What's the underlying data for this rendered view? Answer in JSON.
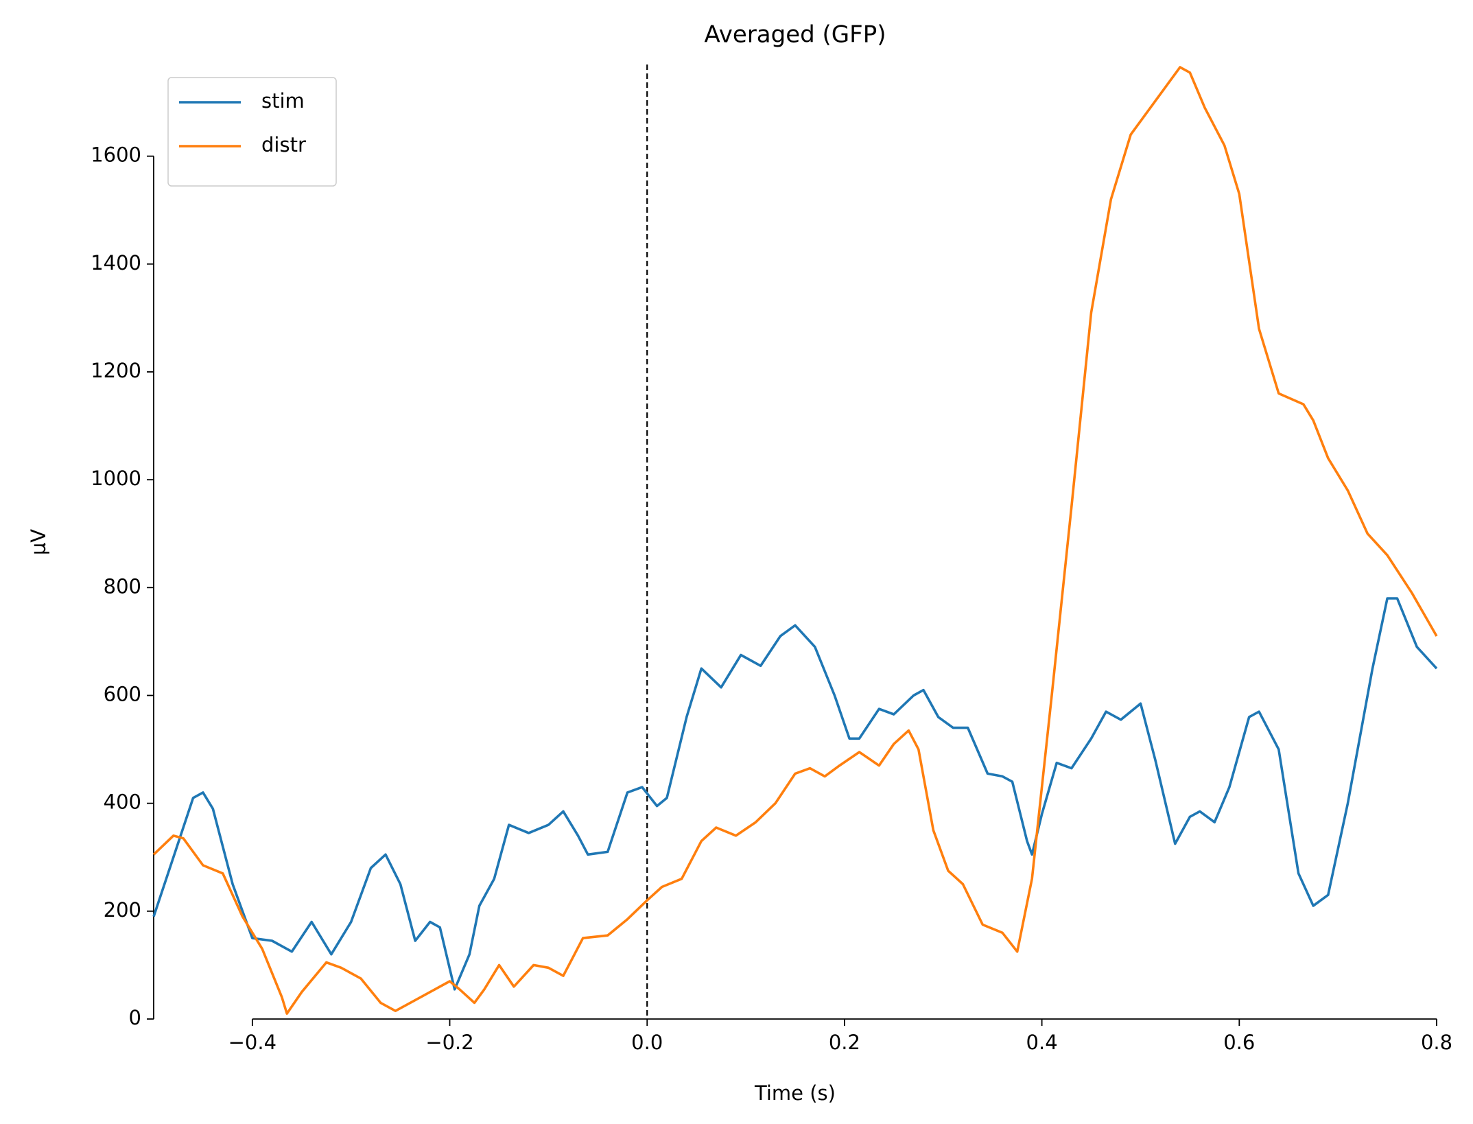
{
  "chart_data": {
    "type": "line",
    "title": "Averaged (GFP)",
    "xlabel": "Time (s)",
    "ylabel": "µV",
    "xlim": [
      -0.5,
      0.8
    ],
    "ylim": [
      0,
      1770
    ],
    "xticks": [
      {
        "value": -0.4,
        "label": "−0.4"
      },
      {
        "value": -0.2,
        "label": "−0.2"
      },
      {
        "value": 0.0,
        "label": "0.0"
      },
      0.2,
      0.4,
      0.6,
      0.8
    ],
    "yticks": [
      0,
      200,
      400,
      600,
      800,
      1000,
      1200,
      1400,
      1600
    ],
    "vline": 0,
    "legend": "upper left",
    "series": [
      {
        "name": "stim",
        "color": "#1f77b4",
        "x": [
          -0.5,
          -0.48,
          -0.46,
          -0.45,
          -0.44,
          -0.42,
          -0.4,
          -0.38,
          -0.36,
          -0.34,
          -0.32,
          -0.3,
          -0.28,
          -0.265,
          -0.25,
          -0.235,
          -0.22,
          -0.21,
          -0.195,
          -0.18,
          -0.17,
          -0.155,
          -0.14,
          -0.12,
          -0.1,
          -0.085,
          -0.07,
          -0.06,
          -0.04,
          -0.02,
          -0.005,
          0.01,
          0.02,
          0.04,
          0.055,
          0.075,
          0.095,
          0.115,
          0.135,
          0.15,
          0.17,
          0.19,
          0.205,
          0.215,
          0.235,
          0.25,
          0.27,
          0.28,
          0.295,
          0.31,
          0.325,
          0.345,
          0.36,
          0.37,
          0.385,
          0.39,
          0.4,
          0.415,
          0.43,
          0.45,
          0.465,
          0.48,
          0.5,
          0.515,
          0.535,
          0.55,
          0.56,
          0.575,
          0.59,
          0.61,
          0.62,
          0.64,
          0.66,
          0.675,
          0.69,
          0.71,
          0.735,
          0.75,
          0.76,
          0.78,
          0.8
        ],
        "values": [
          190,
          300,
          410,
          420,
          390,
          250,
          150,
          145,
          125,
          180,
          120,
          180,
          280,
          305,
          250,
          145,
          180,
          170,
          55,
          120,
          210,
          260,
          360,
          345,
          360,
          385,
          340,
          305,
          310,
          420,
          430,
          395,
          410,
          560,
          650,
          615,
          675,
          655,
          710,
          730,
          690,
          600,
          520,
          520,
          575,
          565,
          600,
          610,
          560,
          540,
          540,
          455,
          450,
          440,
          330,
          305,
          380,
          475,
          465,
          520,
          570,
          555,
          585,
          480,
          325,
          375,
          385,
          365,
          430,
          560,
          570,
          500,
          270,
          210,
          230,
          400,
          650,
          780,
          780,
          690,
          650
        ]
      },
      {
        "name": "distr",
        "color": "#ff7f0e",
        "x": [
          -0.5,
          -0.48,
          -0.47,
          -0.45,
          -0.43,
          -0.41,
          -0.39,
          -0.37,
          -0.365,
          -0.35,
          -0.325,
          -0.31,
          -0.29,
          -0.27,
          -0.255,
          -0.24,
          -0.22,
          -0.2,
          -0.19,
          -0.175,
          -0.165,
          -0.15,
          -0.135,
          -0.115,
          -0.1,
          -0.085,
          -0.065,
          -0.04,
          -0.02,
          0.0,
          0.015,
          0.035,
          0.055,
          0.07,
          0.09,
          0.11,
          0.13,
          0.15,
          0.165,
          0.18,
          0.195,
          0.215,
          0.235,
          0.25,
          0.265,
          0.275,
          0.29,
          0.305,
          0.32,
          0.34,
          0.36,
          0.375,
          0.39,
          0.41,
          0.43,
          0.45,
          0.47,
          0.49,
          0.51,
          0.53,
          0.54,
          0.55,
          0.565,
          0.585,
          0.6,
          0.62,
          0.64,
          0.665,
          0.675,
          0.69,
          0.71,
          0.73,
          0.75,
          0.775,
          0.8
        ],
        "values": [
          305,
          340,
          335,
          285,
          270,
          190,
          130,
          40,
          10,
          50,
          105,
          95,
          75,
          30,
          15,
          30,
          50,
          70,
          55,
          30,
          55,
          100,
          60,
          100,
          95,
          80,
          150,
          155,
          185,
          220,
          245,
          260,
          330,
          355,
          340,
          365,
          400,
          455,
          465,
          450,
          470,
          495,
          470,
          510,
          535,
          500,
          350,
          275,
          250,
          175,
          160,
          125,
          260,
          600,
          950,
          1310,
          1520,
          1640,
          1690,
          1740,
          1765,
          1755,
          1690,
          1620,
          1530,
          1280,
          1160,
          1140,
          1110,
          1040,
          980,
          900,
          860,
          790,
          710
        ]
      }
    ]
  }
}
